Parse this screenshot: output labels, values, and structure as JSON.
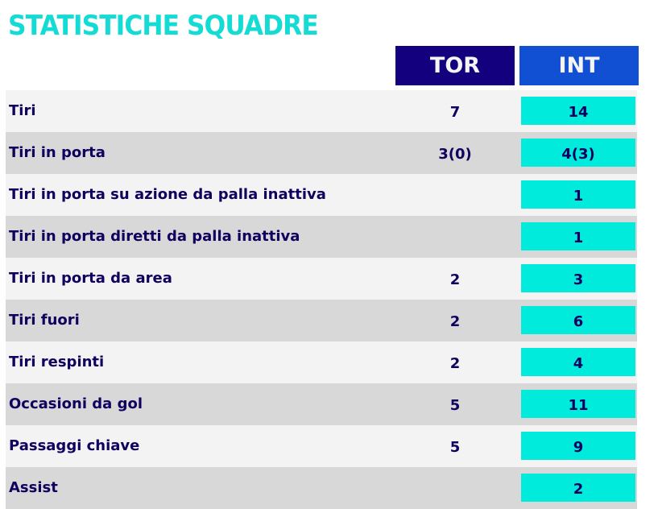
{
  "title": "STATISTICHE SQUADRE",
  "teams": {
    "home": "TOR",
    "away": "INT"
  },
  "colors": {
    "home": "#12007e",
    "away": "#1150d2",
    "highlight": "#00ebdc",
    "title": "#14dcd4"
  },
  "rows": [
    {
      "label": "Tiri",
      "tor": "7",
      "int": "14"
    },
    {
      "label": "Tiri in porta",
      "tor": "3(0)",
      "int": "4(3)"
    },
    {
      "label": "Tiri in porta su azione da palla inattiva",
      "tor": "",
      "int": "1"
    },
    {
      "label": "Tiri in porta diretti da palla inattiva",
      "tor": "",
      "int": "1"
    },
    {
      "label": "Tiri in porta da area",
      "tor": "2",
      "int": "3"
    },
    {
      "label": "Tiri fuori",
      "tor": "2",
      "int": "6"
    },
    {
      "label": "Tiri respinti",
      "tor": "2",
      "int": "4"
    },
    {
      "label": "Occasioni da gol",
      "tor": "5",
      "int": "11"
    },
    {
      "label": "Passaggi chiave",
      "tor": "5",
      "int": "9"
    },
    {
      "label": "Assist",
      "tor": "",
      "int": "2"
    }
  ]
}
